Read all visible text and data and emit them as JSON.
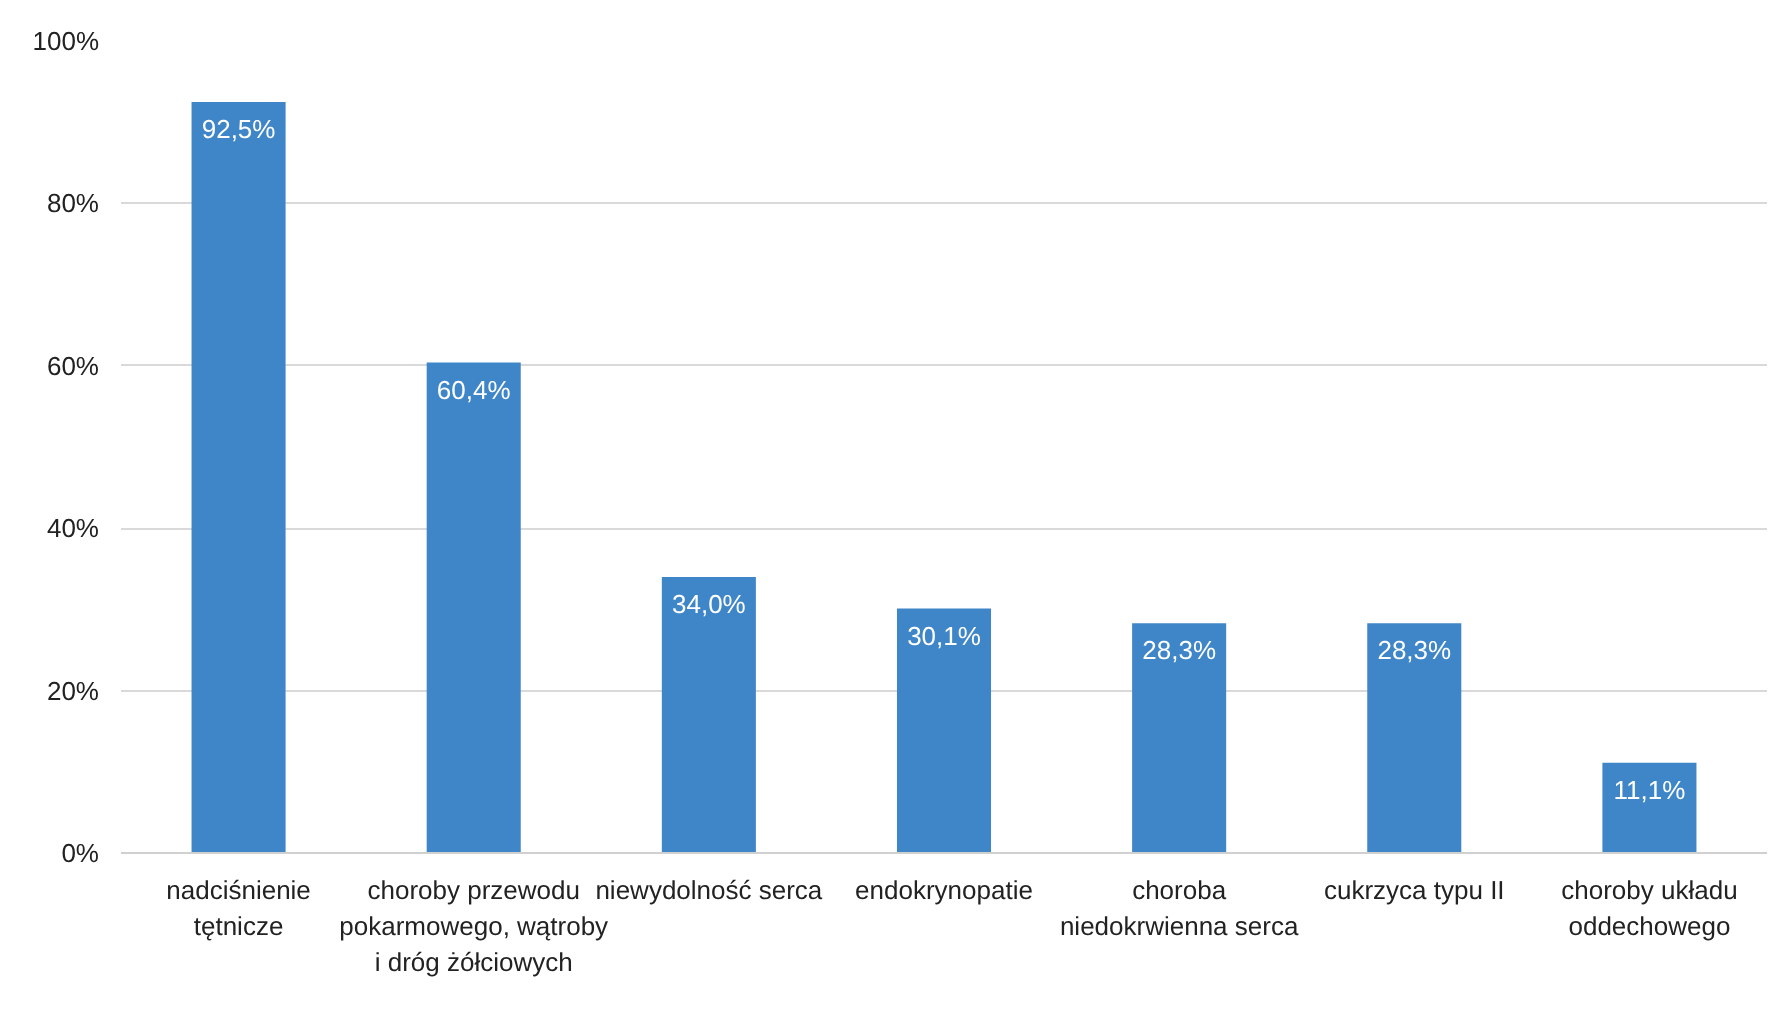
{
  "chart_data": {
    "type": "bar",
    "categories": [
      "nadciśnienie tętnicze",
      "choroby przewodu pokarmowego, wątroby i dróg żółciowych",
      "niewydolność serca",
      "endokrynopatie",
      "choroba niedokrwienna serca",
      "cukrzyca typu II",
      "choroby układu oddechowego"
    ],
    "values": [
      92.5,
      60.4,
      34.0,
      30.1,
      28.3,
      28.3,
      11.1
    ],
    "value_labels": [
      "92,5%",
      "60,4%",
      "34,0%",
      "30,1%",
      "28,3%",
      "28,3%",
      "11,1%"
    ],
    "color": "#3f86c8",
    "ylim": [
      0,
      100
    ],
    "yticks": [
      {
        "value": 0,
        "label": "0%"
      },
      {
        "value": 20,
        "label": "20%"
      },
      {
        "value": 40,
        "label": "40%"
      },
      {
        "value": 60,
        "label": "60%"
      },
      {
        "value": 80,
        "label": "80%"
      },
      {
        "value": 100,
        "label": "100%"
      }
    ],
    "grid": "y"
  }
}
